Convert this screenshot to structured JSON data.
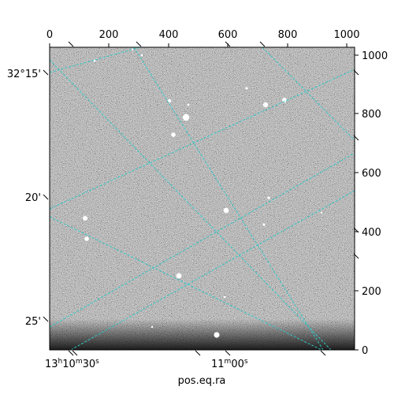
{
  "figure": {
    "xlabel": "pos.eq.ra",
    "top_ticks": [
      "0",
      "200",
      "400",
      "600",
      "800",
      "1000"
    ],
    "right_ticks": [
      "0",
      "200",
      "400",
      "600",
      "800",
      "1000"
    ],
    "dec_ticks": [
      "32°15'",
      "20'",
      "25'"
    ],
    "ra_ticks": {
      "first": {
        "base": "13",
        "h": "h",
        "mid": "10",
        "m": "m",
        "tail": "30",
        "s": "s"
      },
      "second": {
        "mid": "11",
        "m": "m",
        "tail": "00",
        "s": "s"
      }
    }
  },
  "colors": {
    "grid": "#2ec7c7",
    "sky": "#5e5e5e",
    "star": "#ffffff",
    "frame": "#000000"
  }
}
